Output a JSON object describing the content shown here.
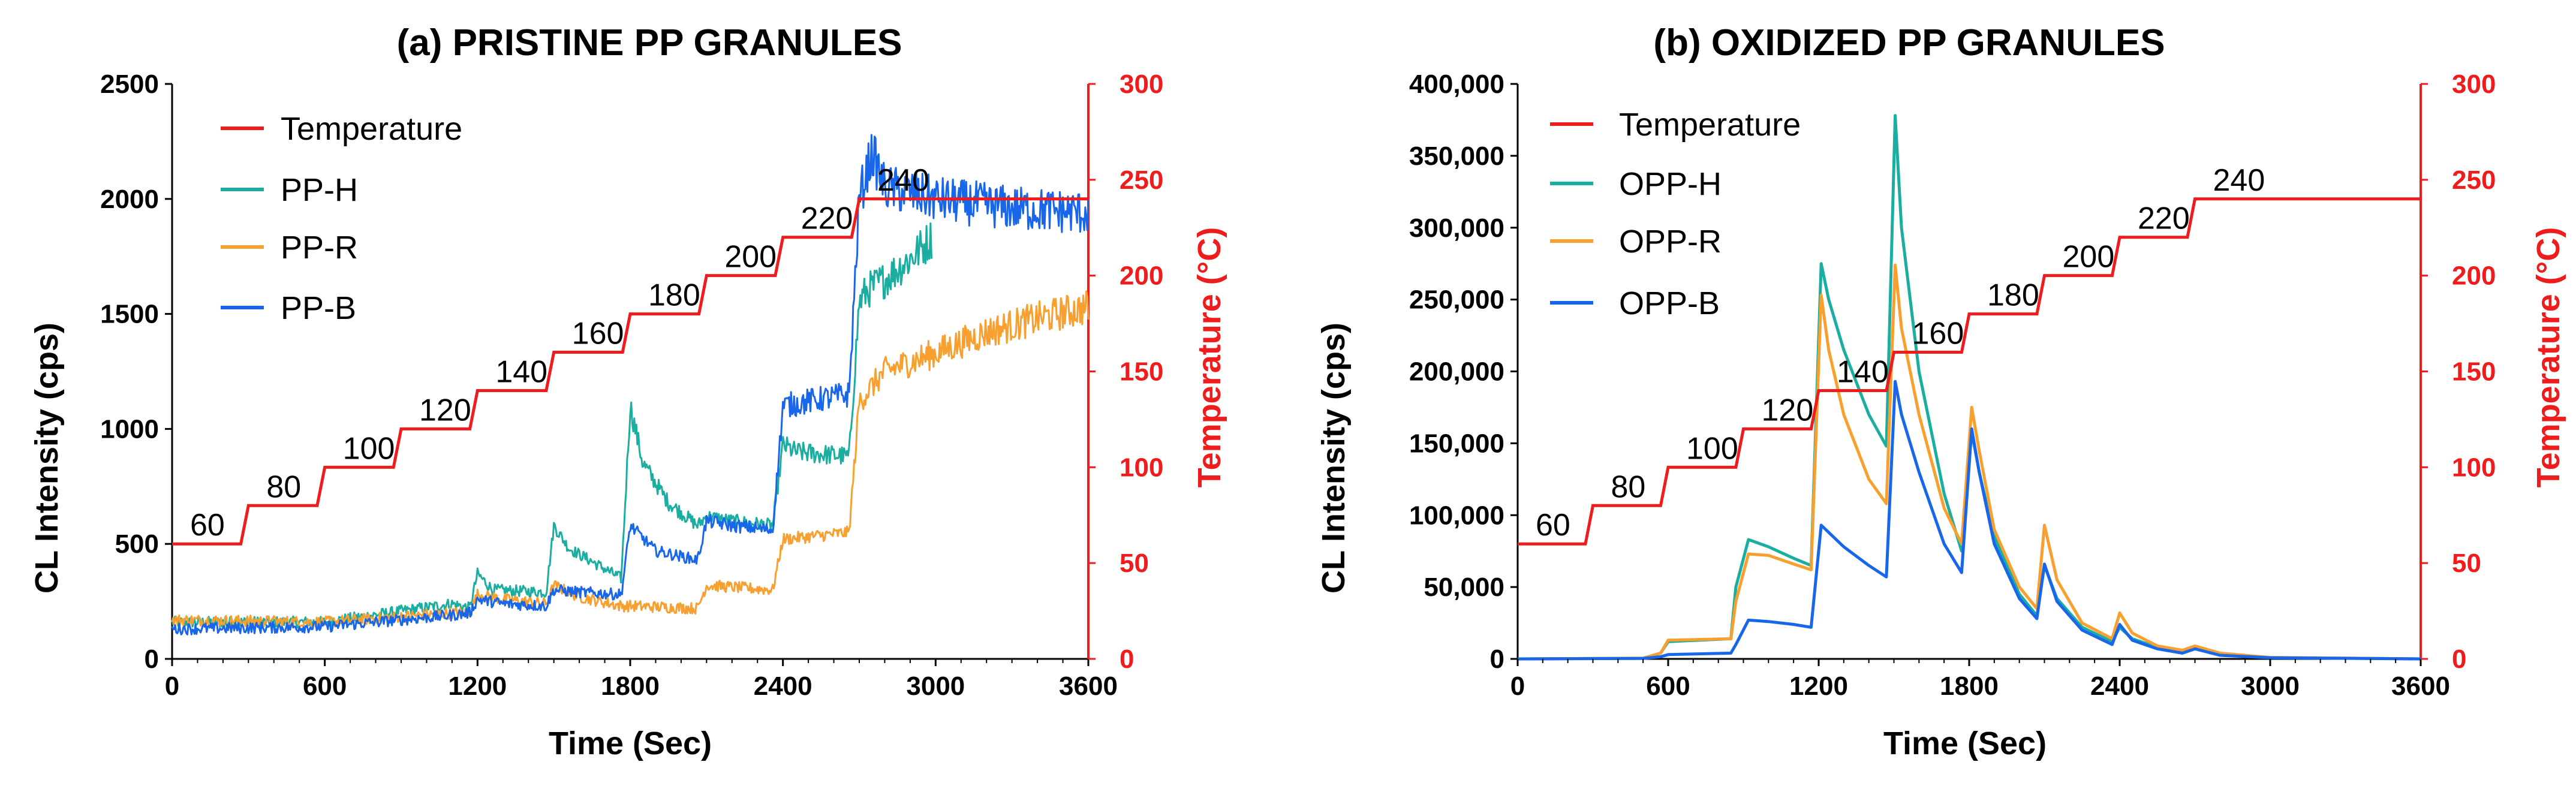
{
  "chart_data": [
    {
      "type": "line",
      "title": "(a) PRISTINE PP GRANULES",
      "xlabel": "Time (Sec)",
      "ylabel": "CL Intensity (cps)",
      "y2label": "Temperature (°C)",
      "xlim": [
        0,
        3600
      ],
      "ylim": [
        0,
        2500
      ],
      "y2lim": [
        0,
        300
      ],
      "xticks": [
        0,
        600,
        1200,
        1800,
        2400,
        3000,
        3600
      ],
      "xtick_labels": [
        "0",
        "600",
        "1200",
        "1800",
        "2400",
        "3000",
        "3600"
      ],
      "yticks": [
        0,
        500,
        1000,
        1500,
        2000,
        2500
      ],
      "ytick_labels": [
        "0",
        "500",
        "1000",
        "1500",
        "2000",
        "2500"
      ],
      "y2ticks": [
        0,
        50,
        100,
        150,
        200,
        250,
        300
      ],
      "y2tick_labels": [
        "0",
        "50",
        "100",
        "150",
        "200",
        "250",
        "300"
      ],
      "legend": [
        "Temperature",
        "PP-H",
        "PP-R",
        "PP-B"
      ],
      "step_labels": [
        "60",
        "80",
        "100",
        "120",
        "140",
        "160",
        "180",
        "200",
        "220",
        "240"
      ],
      "temperature": {
        "name": "Temperature",
        "color": "#ee1c1c",
        "levels": [
          60,
          80,
          100,
          120,
          140,
          160,
          180,
          200,
          220,
          240
        ],
        "steps_at": [
          270,
          570,
          870,
          1170,
          1470,
          1770,
          2070,
          2370,
          2670
        ]
      },
      "series": [
        {
          "name": "PP-H",
          "color": "#1aada0",
          "x": [
            0,
            600,
            1100,
            1170,
            1200,
            1260,
            1470,
            1500,
            1560,
            1640,
            1765,
            1800,
            1850,
            1950,
            2065,
            2100,
            2200,
            2360,
            2400,
            2450,
            2660,
            2700,
            2730,
            2800,
            2900,
            2985
          ],
          "y": [
            160,
            160,
            240,
            220,
            370,
            300,
            290,
            580,
            480,
            430,
            350,
            1100,
            850,
            680,
            580,
            620,
            600,
            580,
            930,
            900,
            880,
            1550,
            1600,
            1650,
            1740,
            1830
          ]
        },
        {
          "name": "PP-R",
          "color": "#f7a02f",
          "x": [
            0,
            600,
            1100,
            1170,
            1200,
            1300,
            1470,
            1500,
            1600,
            1765,
            1800,
            2065,
            2100,
            2360,
            2400,
            2660,
            2700,
            2800,
            3000,
            3200,
            3400,
            3600
          ],
          "y": [
            170,
            160,
            200,
            200,
            280,
            260,
            240,
            320,
            270,
            230,
            230,
            220,
            320,
            300,
            520,
            550,
            1120,
            1250,
            1330,
            1420,
            1480,
            1530
          ]
        },
        {
          "name": "PP-B",
          "color": "#1866ea",
          "x": [
            0,
            600,
            1100,
            1170,
            1200,
            1300,
            1470,
            1500,
            1600,
            1765,
            1800,
            1900,
            2065,
            2100,
            2200,
            2360,
            2400,
            2500,
            2660,
            2700,
            2750,
            2800,
            3000,
            3300,
            3600
          ],
          "y": [
            130,
            140,
            190,
            200,
            260,
            240,
            230,
            300,
            290,
            280,
            580,
            470,
            430,
            600,
            580,
            560,
            1100,
            1120,
            1150,
            2000,
            2200,
            2050,
            2000,
            1960,
            1940
          ]
        }
      ]
    },
    {
      "type": "line",
      "title": "(b) OXIDIZED PP GRANULES",
      "xlabel": "Time (Sec)",
      "ylabel": "CL Intensity (cps)",
      "y2label": "Temperature (°C)",
      "xlim": [
        0,
        3600
      ],
      "ylim": [
        0,
        400000
      ],
      "y2lim": [
        0,
        300
      ],
      "xticks": [
        0,
        600,
        1200,
        1800,
        2400,
        3000,
        3600
      ],
      "xtick_labels": [
        "0",
        "600",
        "1200",
        "1800",
        "2400",
        "3000",
        "3600"
      ],
      "yticks": [
        0,
        50000,
        100000,
        150000,
        200000,
        250000,
        300000,
        350000,
        400000
      ],
      "ytick_labels": [
        "0",
        "50,000",
        "100,000",
        "150,000",
        "200,000",
        "250,000",
        "300,000",
        "350,000",
        "400,000"
      ],
      "y2ticks": [
        0,
        50,
        100,
        150,
        200,
        250,
        300
      ],
      "y2tick_labels": [
        "0",
        "50",
        "100",
        "150",
        "200",
        "250",
        "300"
      ],
      "legend": [
        "Temperature",
        "OPP-H",
        "OPP-R",
        "OPP-B"
      ],
      "step_labels": [
        "60",
        "80",
        "100",
        "120",
        "140",
        "160",
        "180",
        "200",
        "220",
        "240"
      ],
      "temperature": {
        "name": "Temperature",
        "color": "#ee1c1c",
        "levels": [
          60,
          80,
          100,
          120,
          140,
          160,
          180,
          200,
          220,
          240
        ],
        "steps_at": [
          270,
          570,
          870,
          1170,
          1470,
          1770,
          2070,
          2370,
          2670
        ]
      },
      "series": [
        {
          "name": "OPP-H",
          "color": "#1aada0",
          "x": [
            0,
            500,
            570,
            600,
            850,
            870,
            920,
            1000,
            1100,
            1170,
            1210,
            1240,
            1300,
            1400,
            1470,
            1505,
            1530,
            1600,
            1700,
            1770,
            1810,
            1840,
            1900,
            2000,
            2070,
            2100,
            2150,
            2250,
            2370,
            2400,
            2450,
            2550,
            2650,
            2700,
            2800,
            3000,
            3600
          ],
          "y": [
            0,
            500,
            4000,
            12000,
            14000,
            50000,
            83000,
            78000,
            70000,
            65000,
            275000,
            250000,
            215000,
            170000,
            148000,
            378000,
            300000,
            200000,
            115000,
            75000,
            158000,
            130000,
            85000,
            45000,
            30000,
            65000,
            42000,
            22000,
            12000,
            22000,
            14000,
            8000,
            5000,
            8000,
            3000,
            1000,
            0
          ]
        },
        {
          "name": "OPP-R",
          "color": "#f7a02f",
          "x": [
            0,
            500,
            570,
            600,
            850,
            870,
            920,
            1000,
            1100,
            1170,
            1210,
            1240,
            1300,
            1400,
            1470,
            1505,
            1530,
            1600,
            1700,
            1770,
            1810,
            1840,
            1900,
            2000,
            2070,
            2100,
            2150,
            2250,
            2370,
            2400,
            2450,
            2550,
            2650,
            2700,
            2800,
            3000,
            3600
          ],
          "y": [
            0,
            500,
            4000,
            13000,
            14000,
            40000,
            73000,
            72000,
            66000,
            62000,
            253000,
            215000,
            170000,
            125000,
            108000,
            274000,
            230000,
            170000,
            105000,
            80000,
            175000,
            145000,
            90000,
            50000,
            35000,
            93000,
            55000,
            25000,
            14000,
            32000,
            18000,
            9000,
            6000,
            9000,
            4000,
            1000,
            0
          ]
        },
        {
          "name": "OPP-B",
          "color": "#1866ea",
          "x": [
            0,
            500,
            570,
            600,
            850,
            870,
            920,
            1000,
            1100,
            1170,
            1210,
            1240,
            1300,
            1400,
            1470,
            1505,
            1530,
            1600,
            1700,
            1770,
            1810,
            1840,
            1900,
            2000,
            2070,
            2100,
            2150,
            2250,
            2370,
            2400,
            2450,
            2550,
            2650,
            2700,
            2800,
            3000,
            3600
          ],
          "y": [
            0,
            300,
            1500,
            3000,
            4000,
            10000,
            27000,
            26000,
            24000,
            22000,
            93000,
            88000,
            78000,
            65000,
            57000,
            193000,
            170000,
            130000,
            80000,
            60000,
            160000,
            130000,
            80000,
            42000,
            28000,
            66000,
            40000,
            20000,
            10000,
            24000,
            13000,
            7000,
            4000,
            7000,
            2500,
            800,
            0
          ]
        }
      ]
    }
  ]
}
